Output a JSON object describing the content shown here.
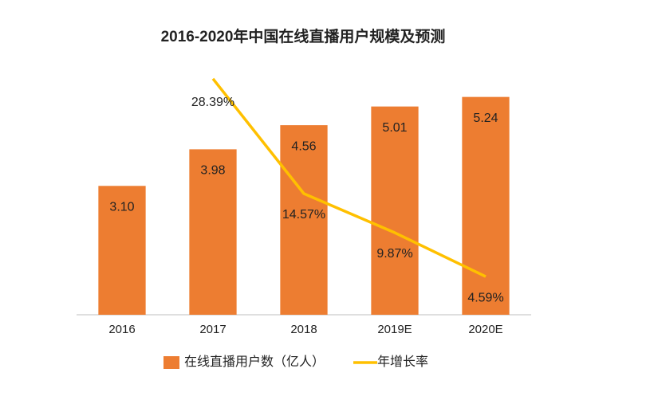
{
  "chart_data": {
    "type": "bar",
    "title": "2016-2020年中国在线直播用户规模及预测",
    "categories": [
      "2016",
      "2017",
      "2018",
      "2019E",
      "2020E"
    ],
    "series": [
      {
        "name": "在线直播用户数（亿人）",
        "type": "bar",
        "color": "#ED7D31",
        "values": [
          3.1,
          3.98,
          4.56,
          5.01,
          5.24
        ],
        "value_labels": [
          "3.10",
          "3.98",
          "4.56",
          "5.01",
          "5.24"
        ]
      },
      {
        "name": "年增长率",
        "type": "line",
        "axis": "y2",
        "color": "#FFC000",
        "values": [
          null,
          28.39,
          14.57,
          9.87,
          4.59
        ],
        "value_labels": [
          null,
          "28.39%",
          "14.57%",
          "9.87%",
          "4.59%"
        ]
      }
    ],
    "ylim": [
      0,
      6
    ],
    "y2lim": [
      0,
      30
    ],
    "legend": "bottom"
  }
}
